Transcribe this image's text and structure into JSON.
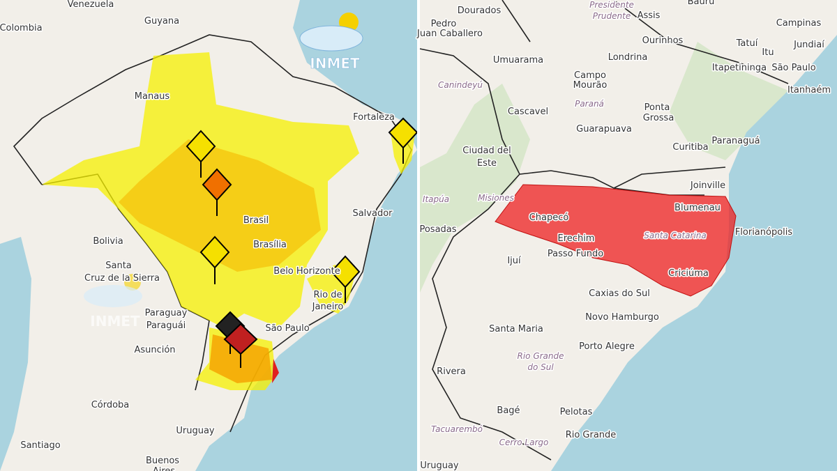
{
  "left_map": {
    "logo": "INMET",
    "logo_faded": "INMET",
    "labels": [
      "Venezuela",
      "Guyana",
      "Colombia",
      "Manaus",
      "Fortaleza",
      "Salvador",
      "Bolivia",
      "Santa",
      "Cruz de la Sierra",
      "Brasil",
      "Brasília",
      "Belo Horizonte",
      "Rio de",
      "Janeiro",
      "Paraguay",
      "Paraguái",
      "Asunción",
      "São Paulo",
      "Córdoba",
      "Uruguay",
      "Santiago",
      "Buenos",
      "Aires"
    ]
  },
  "right_map": {
    "labels": [
      "Dourados",
      "Presidente",
      "Prudente",
      "Assis",
      "Bauru",
      "Campinas",
      "Jundiaí",
      "Pedro",
      "Juan Caballero",
      "Londrina",
      "Ourinhos",
      "Tatuí",
      "Itu",
      "Umuarama",
      "Campo",
      "Mourão",
      "Itapetininga",
      "São Paulo",
      "Itanhaém",
      "Canindeyú",
      "Paraná",
      "Cascavel",
      "Ponta",
      "Grossa",
      "Guarapuava",
      "Curitiba",
      "Paranaguá",
      "Ciudad del",
      "Este",
      "Joinville",
      "Itapúa",
      "Misiones",
      "Blumenau",
      "Posadas",
      "Chapecó",
      "Erechim",
      "Santa Catarina",
      "Florianópolis",
      "Ijuí",
      "Passo Fundo",
      "Criciúma",
      "Caxias do Sul",
      "Novo Hamburgo",
      "Santa Maria",
      "Rio Grande",
      "do Sul",
      "Porto Alegre",
      "Rivera",
      "Bagé",
      "Pelotas",
      "Tacuarembó",
      "Cerro Largo",
      "Rio Grande",
      "Uruguay"
    ]
  }
}
